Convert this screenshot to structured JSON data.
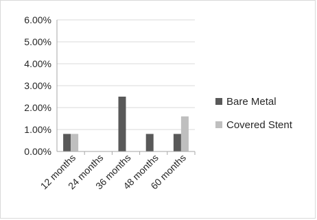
{
  "chart_data": {
    "type": "bar",
    "categories": [
      "12 months",
      "24 months",
      "36 months",
      "48 months",
      "60 months"
    ],
    "series": [
      {
        "name": "Bare Metal",
        "color": "#595959",
        "values": [
          0.8,
          0,
          2.5,
          0.8,
          0.8
        ]
      },
      {
        "name": "Covered Stent",
        "color": "#bfbfbf",
        "values": [
          0.8,
          0,
          0,
          0,
          1.6
        ]
      }
    ],
    "y_ticks": [
      "0.00%",
      "1.00%",
      "2.00%",
      "3.00%",
      "4.00%",
      "5.00%",
      "6.00%"
    ],
    "ylim": [
      0,
      6
    ],
    "unit": "%",
    "grid": true,
    "legend_position": "right"
  }
}
